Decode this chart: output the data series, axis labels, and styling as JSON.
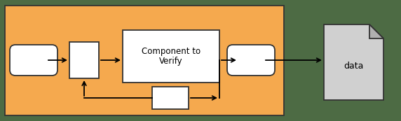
{
  "fig_width": 5.72,
  "fig_height": 1.73,
  "dpi": 100,
  "bg_orange": "#F5A94E",
  "bg_green": "#4d6b44",
  "box_fill": "#ffffff",
  "box_edge": "#333333",
  "data_file_fill": "#d0d0d0",
  "fold_fill": "#b0b0b0",
  "arrow_color": "#000000",
  "component_label": "Component to\nVerify",
  "data_label": "data",
  "lw": 1.3
}
